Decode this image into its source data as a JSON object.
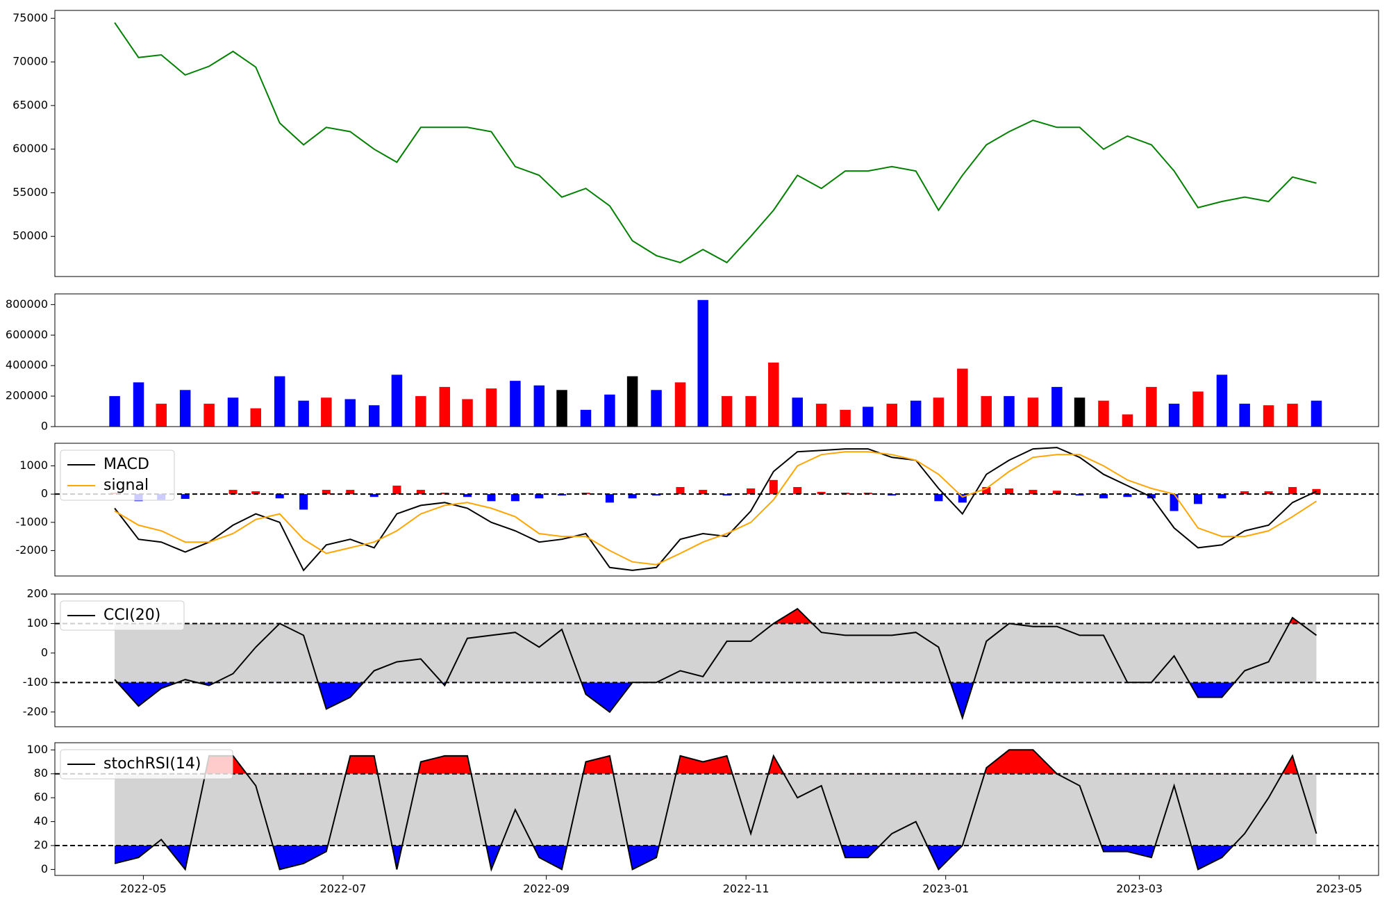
{
  "chart_data": [
    {
      "type": "line",
      "color": "green",
      "x": [
        2022.305,
        2022.325,
        2022.344,
        2022.364,
        2022.384,
        2022.404,
        2022.423,
        2022.443,
        2022.463,
        2022.482,
        2022.502,
        2022.522,
        2022.541,
        2022.561,
        2022.581,
        2022.6,
        2022.62,
        2022.64,
        2022.66,
        2022.679,
        2022.699,
        2022.719,
        2022.738,
        2022.758,
        2022.778,
        2022.797,
        2022.817,
        2022.837,
        2022.856,
        2022.876,
        2022.896,
        2022.916,
        2022.935,
        2022.955,
        2022.975,
        2022.994,
        2023.014,
        2023.034,
        2023.053,
        2023.073,
        2023.093,
        2023.112,
        2023.132,
        2023.152,
        2023.172,
        2023.191,
        2023.211,
        2023.231,
        2023.25,
        2023.27,
        2023.29,
        2023.31
      ],
      "values": [
        74500,
        70500,
        70800,
        68500,
        69500,
        71200,
        69400,
        63000,
        60500,
        62500,
        62000,
        60000,
        58500,
        62500,
        62500,
        62500,
        62000,
        58000,
        57000,
        54500,
        55500,
        53500,
        49500,
        47800,
        47000,
        48500,
        47000,
        50000,
        53000,
        57000,
        55500,
        57500,
        57500,
        58000,
        57500,
        53000,
        57000,
        60500,
        62000,
        63300,
        62500,
        62500,
        60000,
        61500,
        60500,
        57500,
        53300,
        54000,
        54500,
        54000,
        56800,
        56100
      ],
      "xlim": [
        2022.255,
        2023.362
      ],
      "ylim": [
        45400,
        75900
      ],
      "yticks": [
        50000,
        55000,
        60000,
        65000,
        70000,
        75000
      ]
    },
    {
      "type": "bar",
      "x": [
        2022.305,
        2022.325,
        2022.344,
        2022.364,
        2022.384,
        2022.404,
        2022.423,
        2022.443,
        2022.463,
        2022.482,
        2022.502,
        2022.522,
        2022.541,
        2022.561,
        2022.581,
        2022.6,
        2022.62,
        2022.64,
        2022.66,
        2022.679,
        2022.699,
        2022.719,
        2022.738,
        2022.758,
        2022.778,
        2022.797,
        2022.817,
        2022.837,
        2022.856,
        2022.876,
        2022.896,
        2022.916,
        2022.935,
        2022.955,
        2022.975,
        2022.994,
        2023.014,
        2023.034,
        2023.053,
        2023.073,
        2023.093,
        2023.112,
        2023.132,
        2023.152,
        2023.172,
        2023.191,
        2023.211,
        2023.231,
        2023.25,
        2023.27,
        2023.29,
        2023.31
      ],
      "values": [
        200000,
        290000,
        150000,
        240000,
        150000,
        190000,
        120000,
        330000,
        170000,
        190000,
        180000,
        140000,
        340000,
        200000,
        260000,
        180000,
        250000,
        300000,
        270000,
        240000,
        110000,
        210000,
        330000,
        240000,
        290000,
        830000,
        200000,
        200000,
        420000,
        190000,
        150000,
        110000,
        130000,
        150000,
        170000,
        190000,
        380000,
        200000,
        200000,
        190000,
        260000,
        190000,
        170000,
        80000,
        260000,
        150000,
        230000,
        340000,
        150000,
        140000,
        150000,
        170000
      ],
      "colors": [
        "blue",
        "blue",
        "red",
        "blue",
        "red",
        "blue",
        "red",
        "blue",
        "blue",
        "red",
        "blue",
        "blue",
        "blue",
        "red",
        "red",
        "red",
        "red",
        "blue",
        "blue",
        "black",
        "blue",
        "blue",
        "black",
        "blue",
        "red",
        "blue",
        "red",
        "red",
        "red",
        "blue",
        "red",
        "red",
        "blue",
        "red",
        "blue",
        "red",
        "red",
        "red",
        "blue",
        "red",
        "blue",
        "black",
        "red",
        "red",
        "red",
        "blue",
        "red",
        "blue",
        "blue",
        "red",
        "red",
        "blue"
      ],
      "xlim": [
        2022.255,
        2023.362
      ],
      "ylim": [
        0,
        870000
      ],
      "yticks": [
        0,
        200000,
        400000,
        600000,
        800000
      ]
    },
    {
      "type": "line",
      "x": [
        2022.305,
        2022.325,
        2022.344,
        2022.364,
        2022.384,
        2022.404,
        2022.423,
        2022.443,
        2022.463,
        2022.482,
        2022.502,
        2022.522,
        2022.541,
        2022.561,
        2022.581,
        2022.6,
        2022.62,
        2022.64,
        2022.66,
        2022.679,
        2022.699,
        2022.719,
        2022.738,
        2022.758,
        2022.778,
        2022.797,
        2022.817,
        2022.837,
        2022.856,
        2022.876,
        2022.896,
        2022.916,
        2022.935,
        2022.955,
        2022.975,
        2022.994,
        2023.014,
        2023.034,
        2023.053,
        2023.073,
        2023.093,
        2023.112,
        2023.132,
        2023.152,
        2023.172,
        2023.191,
        2023.211,
        2023.231,
        2023.25,
        2023.27,
        2023.29,
        2023.31
      ],
      "series": [
        {
          "name": "MACD",
          "color": "black",
          "values": [
            -500,
            -1600,
            -1700,
            -2050,
            -1700,
            -1100,
            -700,
            -1000,
            -2700,
            -1800,
            -1600,
            -1900,
            -700,
            -400,
            -300,
            -500,
            -1000,
            -1300,
            -1700,
            -1600,
            -1400,
            -2600,
            -2700,
            -2600,
            -1600,
            -1400,
            -1500,
            -600,
            800,
            1500,
            1550,
            1600,
            1600,
            1300,
            1200,
            200,
            -700,
            700,
            1200,
            1600,
            1650,
            1300,
            700,
            300,
            -100,
            -1200,
            -1900,
            -1800,
            -1300,
            -1100,
            -300,
            100
          ]
        },
        {
          "name": "signal",
          "color": "orange",
          "values": [
            -600,
            -1100,
            -1300,
            -1700,
            -1700,
            -1400,
            -900,
            -700,
            -1600,
            -2100,
            -1900,
            -1700,
            -1300,
            -700,
            -400,
            -300,
            -500,
            -800,
            -1400,
            -1500,
            -1500,
            -2000,
            -2400,
            -2500,
            -2100,
            -1700,
            -1400,
            -1000,
            -200,
            1000,
            1400,
            1500,
            1500,
            1400,
            1200,
            700,
            -100,
            200,
            800,
            1300,
            1400,
            1400,
            1000,
            500,
            200,
            0,
            -1200,
            -1500,
            -1500,
            -1300,
            -800,
            -250
          ]
        }
      ],
      "histogram": {
        "values": [
          50,
          -250,
          -200,
          -170,
          0,
          150,
          100,
          -150,
          -550,
          150,
          150,
          -100,
          300,
          150,
          50,
          -100,
          -250,
          -250,
          -150,
          -50,
          50,
          -300,
          -150,
          -50,
          250,
          150,
          -50,
          200,
          500,
          250,
          80,
          50,
          50,
          -50,
          0,
          -250,
          -300,
          250,
          200,
          150,
          120,
          -50,
          -150,
          -100,
          -150,
          -600,
          -350,
          -150,
          100,
          100,
          250,
          180
        ],
        "colors": [
          "red",
          "blue"
        ]
      },
      "thresholds": [
        0
      ],
      "xlim": [
        2022.255,
        2023.362
      ],
      "ylim": [
        -2900,
        1800
      ],
      "yticks": [
        -2000,
        -1000,
        0,
        1000
      ],
      "legend": "upper left"
    },
    {
      "type": "line",
      "x": [
        2022.305,
        2022.325,
        2022.344,
        2022.364,
        2022.384,
        2022.404,
        2022.423,
        2022.443,
        2022.463,
        2022.482,
        2022.502,
        2022.522,
        2022.541,
        2022.561,
        2022.581,
        2022.6,
        2022.62,
        2022.64,
        2022.66,
        2022.679,
        2022.699,
        2022.719,
        2022.738,
        2022.758,
        2022.778,
        2022.797,
        2022.817,
        2022.837,
        2022.856,
        2022.876,
        2022.896,
        2022.916,
        2022.935,
        2022.955,
        2022.975,
        2022.994,
        2023.014,
        2023.034,
        2023.053,
        2023.073,
        2023.093,
        2023.112,
        2023.132,
        2023.152,
        2023.172,
        2023.191,
        2023.211,
        2023.231,
        2023.25,
        2023.27,
        2023.29,
        2023.31
      ],
      "series": [
        {
          "name": "CCI(20)",
          "color": "black",
          "values": [
            -90,
            -180,
            -120,
            -90,
            -110,
            -70,
            20,
            100,
            60,
            -190,
            -150,
            -60,
            -30,
            -20,
            -110,
            50,
            60,
            70,
            20,
            80,
            -140,
            -200,
            -100,
            -100,
            -60,
            -80,
            40,
            40,
            100,
            150,
            70,
            60,
            60,
            60,
            70,
            20,
            -220,
            40,
            100,
            90,
            90,
            60,
            60,
            -100,
            -100,
            -10,
            -150,
            -150,
            -60,
            -30,
            120,
            60
          ]
        }
      ],
      "thresholds": [
        -100,
        100
      ],
      "band_color": "#d3d3d3",
      "above_color": "red",
      "below_color": "blue",
      "xlim": [
        2022.255,
        2023.362
      ],
      "ylim": [
        -250,
        200
      ],
      "yticks": [
        -200,
        -100,
        0,
        100,
        200
      ],
      "legend": "upper left"
    },
    {
      "type": "line",
      "x": [
        2022.305,
        2022.325,
        2022.344,
        2022.364,
        2022.384,
        2022.404,
        2022.423,
        2022.443,
        2022.463,
        2022.482,
        2022.502,
        2022.522,
        2022.541,
        2022.561,
        2022.581,
        2022.6,
        2022.62,
        2022.64,
        2022.66,
        2022.679,
        2022.699,
        2022.719,
        2022.738,
        2022.758,
        2022.778,
        2022.797,
        2022.817,
        2022.837,
        2022.856,
        2022.876,
        2022.896,
        2022.916,
        2022.935,
        2022.955,
        2022.975,
        2022.994,
        2023.014,
        2023.034,
        2023.053,
        2023.073,
        2023.093,
        2023.112,
        2023.132,
        2023.152,
        2023.172,
        2023.191,
        2023.211,
        2023.231,
        2023.25,
        2023.27,
        2023.29,
        2023.31
      ],
      "series": [
        {
          "name": "stochRSI(14)",
          "color": "black",
          "values": [
            5,
            10,
            25,
            0,
            95,
            95,
            70,
            0,
            5,
            15,
            95,
            95,
            0,
            90,
            95,
            95,
            0,
            50,
            10,
            0,
            90,
            95,
            0,
            10,
            95,
            90,
            95,
            30,
            95,
            60,
            70,
            10,
            10,
            30,
            40,
            0,
            20,
            85,
            100,
            100,
            80,
            70,
            15,
            15,
            10,
            70,
            0,
            10,
            30,
            60,
            95,
            30
          ]
        }
      ],
      "thresholds": [
        20,
        80
      ],
      "band_color": "#d3d3d3",
      "above_color": "red",
      "below_color": "blue",
      "xlim": [
        2022.255,
        2023.362
      ],
      "ylim": [
        -5,
        106
      ],
      "yticks": [
        0,
        20,
        40,
        60,
        80,
        100
      ],
      "legend": "upper left",
      "xticks": [
        {
          "value": 2022.329,
          "label": "2022-05"
        },
        {
          "value": 2022.496,
          "label": "2022-07"
        },
        {
          "value": 2022.666,
          "label": "2022-09"
        },
        {
          "value": 2022.833,
          "label": "2022-11"
        },
        {
          "value": 2023.0,
          "label": "2023-01"
        },
        {
          "value": 2023.162,
          "label": "2023-03"
        },
        {
          "value": 2023.329,
          "label": "2023-05"
        }
      ]
    }
  ]
}
